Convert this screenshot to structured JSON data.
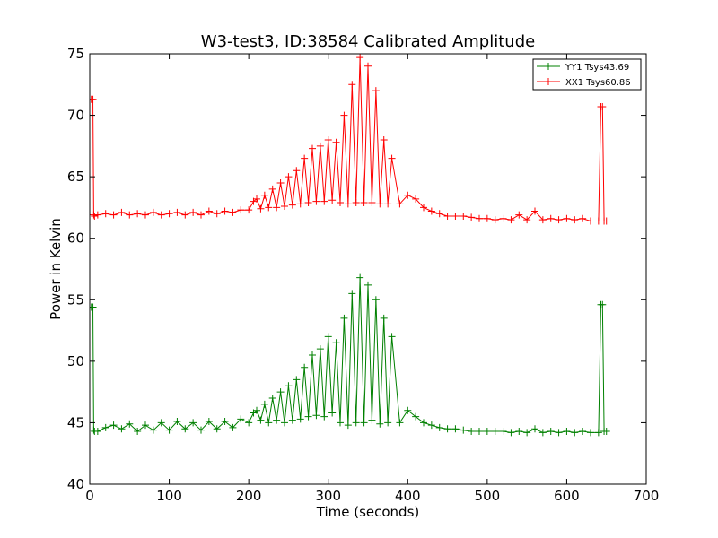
{
  "chart_data": {
    "type": "line",
    "title": "W3-test3, ID:38584 Calibrated Amplitude",
    "xlabel": "Time (seconds)",
    "ylabel": "Power in Kelvin",
    "xlim": [
      0,
      700
    ],
    "ylim": [
      40,
      75
    ],
    "xticks": [
      0,
      100,
      200,
      300,
      400,
      500,
      600,
      700
    ],
    "yticks": [
      40,
      45,
      50,
      55,
      60,
      65,
      70,
      75
    ],
    "grid": false,
    "legend_position": "top-right",
    "marker": "+",
    "series": [
      {
        "name": "YY1 Tsys43.69",
        "color": "#008000",
        "x": [
          2,
          4,
          5,
          6,
          10,
          20,
          30,
          40,
          50,
          60,
          70,
          80,
          90,
          100,
          110,
          120,
          130,
          140,
          150,
          160,
          170,
          180,
          190,
          200,
          206,
          210,
          215,
          220,
          225,
          230,
          235,
          240,
          245,
          250,
          255,
          260,
          265,
          270,
          275,
          280,
          285,
          290,
          295,
          300,
          305,
          310,
          315,
          320,
          325,
          330,
          335,
          340,
          345,
          350,
          355,
          360,
          365,
          370,
          375,
          380,
          390,
          400,
          410,
          420,
          430,
          440,
          450,
          460,
          470,
          480,
          490,
          500,
          510,
          520,
          530,
          540,
          550,
          560,
          570,
          580,
          590,
          600,
          610,
          620,
          630,
          640,
          643,
          645,
          647,
          650
        ],
        "values": [
          54.4,
          54.4,
          44.4,
          44.3,
          44.3,
          44.6,
          44.8,
          44.5,
          44.9,
          44.3,
          44.8,
          44.4,
          45.0,
          44.4,
          45.1,
          44.5,
          45.0,
          44.4,
          45.1,
          44.5,
          45.1,
          44.6,
          45.3,
          45.0,
          45.8,
          46.0,
          45.2,
          46.5,
          45.0,
          47.0,
          45.2,
          47.5,
          45.0,
          48.0,
          45.2,
          48.5,
          45.3,
          49.5,
          45.5,
          50.5,
          45.6,
          51.0,
          45.5,
          52.0,
          45.8,
          51.5,
          45.0,
          53.5,
          44.8,
          55.5,
          45.0,
          56.8,
          45.0,
          56.2,
          45.2,
          55.0,
          44.9,
          53.5,
          45.0,
          52.0,
          45.0,
          46.0,
          45.5,
          45.0,
          44.8,
          44.6,
          44.5,
          44.5,
          44.4,
          44.3,
          44.3,
          44.3,
          44.3,
          44.3,
          44.2,
          44.3,
          44.2,
          44.5,
          44.2,
          44.3,
          44.2,
          44.3,
          44.2,
          44.3,
          44.2,
          44.2,
          54.6,
          54.6,
          44.3,
          44.3
        ]
      },
      {
        "name": "XX1 Tsys60.86",
        "color": "#ff0000",
        "x": [
          2,
          4,
          5,
          6,
          10,
          20,
          30,
          40,
          50,
          60,
          70,
          80,
          90,
          100,
          110,
          120,
          130,
          140,
          150,
          160,
          170,
          180,
          190,
          200,
          206,
          210,
          215,
          220,
          225,
          230,
          235,
          240,
          245,
          250,
          255,
          260,
          265,
          270,
          275,
          280,
          285,
          290,
          295,
          300,
          305,
          310,
          315,
          320,
          325,
          330,
          335,
          340,
          345,
          350,
          355,
          360,
          365,
          370,
          375,
          380,
          390,
          400,
          410,
          420,
          430,
          440,
          450,
          460,
          470,
          480,
          490,
          500,
          510,
          520,
          530,
          540,
          550,
          560,
          570,
          580,
          590,
          600,
          610,
          620,
          630,
          640,
          643,
          645,
          647,
          650
        ],
        "values": [
          71.3,
          71.3,
          61.9,
          61.8,
          61.9,
          62.0,
          61.9,
          62.1,
          61.9,
          62.0,
          61.9,
          62.1,
          61.9,
          62.0,
          62.1,
          61.9,
          62.1,
          61.9,
          62.2,
          62.0,
          62.2,
          62.1,
          62.3,
          62.3,
          63.0,
          63.2,
          62.4,
          63.5,
          62.5,
          64.0,
          62.5,
          64.5,
          62.6,
          65.0,
          62.7,
          65.5,
          62.8,
          66.5,
          62.9,
          67.3,
          63.0,
          67.5,
          63.0,
          68.0,
          63.1,
          67.8,
          62.9,
          70.0,
          62.8,
          72.5,
          62.9,
          74.7,
          62.9,
          74.0,
          62.9,
          72.0,
          62.8,
          68.0,
          62.8,
          66.5,
          62.8,
          63.5,
          63.2,
          62.5,
          62.2,
          62.0,
          61.8,
          61.8,
          61.8,
          61.7,
          61.6,
          61.6,
          61.5,
          61.6,
          61.5,
          61.9,
          61.5,
          62.2,
          61.5,
          61.6,
          61.5,
          61.6,
          61.5,
          61.6,
          61.4,
          61.4,
          70.7,
          70.7,
          61.4,
          61.4
        ]
      }
    ]
  }
}
